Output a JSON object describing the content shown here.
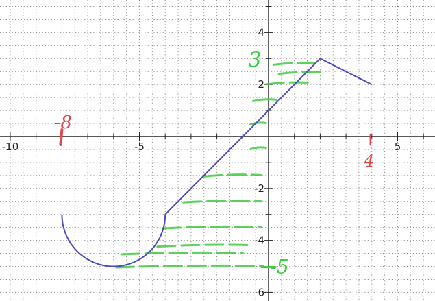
{
  "chart_data": {
    "type": "line",
    "title": "",
    "xlabel": "",
    "ylabel": "",
    "xlim": [
      -10.5,
      6.3
    ],
    "ylim": [
      -6.3,
      5.1
    ],
    "grid": true,
    "grid_style": "dotted",
    "x_tick_labels": [
      {
        "value": -10,
        "label": "-10"
      },
      {
        "value": -5,
        "label": "-5"
      },
      {
        "value": 5,
        "label": "5"
      }
    ],
    "y_tick_labels": [
      {
        "value": 4,
        "label": "4"
      },
      {
        "value": 2,
        "label": "2"
      },
      {
        "value": -2,
        "label": "-2"
      },
      {
        "value": -4,
        "label": "-4"
      },
      {
        "value": -6,
        "label": "-6"
      }
    ],
    "series": [
      {
        "color": "#4a4abf",
        "pieces": [
          {
            "kind": "semicircle",
            "center": [
              -6,
              -3
            ],
            "radius": 2
          },
          {
            "kind": "segment",
            "points": [
              [
                -4,
                -3
              ],
              [
                2,
                3
              ]
            ]
          },
          {
            "kind": "segment",
            "points": [
              [
                2,
                3
              ],
              [
                4,
                2
              ]
            ]
          }
        ]
      }
    ],
    "annotations": {
      "color_red": "#e0484a",
      "color_green": "#3fcc3f",
      "items": [
        {
          "text": "-8",
          "color": "red",
          "at": [
            -8,
            0
          ]
        },
        {
          "text": "4",
          "color": "red",
          "at": [
            4,
            0
          ]
        },
        {
          "text": "3",
          "color": "green",
          "at": [
            0,
            3
          ]
        },
        {
          "text": "-5",
          "color": "green",
          "at": [
            0,
            -5
          ]
        }
      ],
      "range_shading": {
        "color": "green",
        "from_y": -5,
        "to_y": 3
      }
    }
  }
}
